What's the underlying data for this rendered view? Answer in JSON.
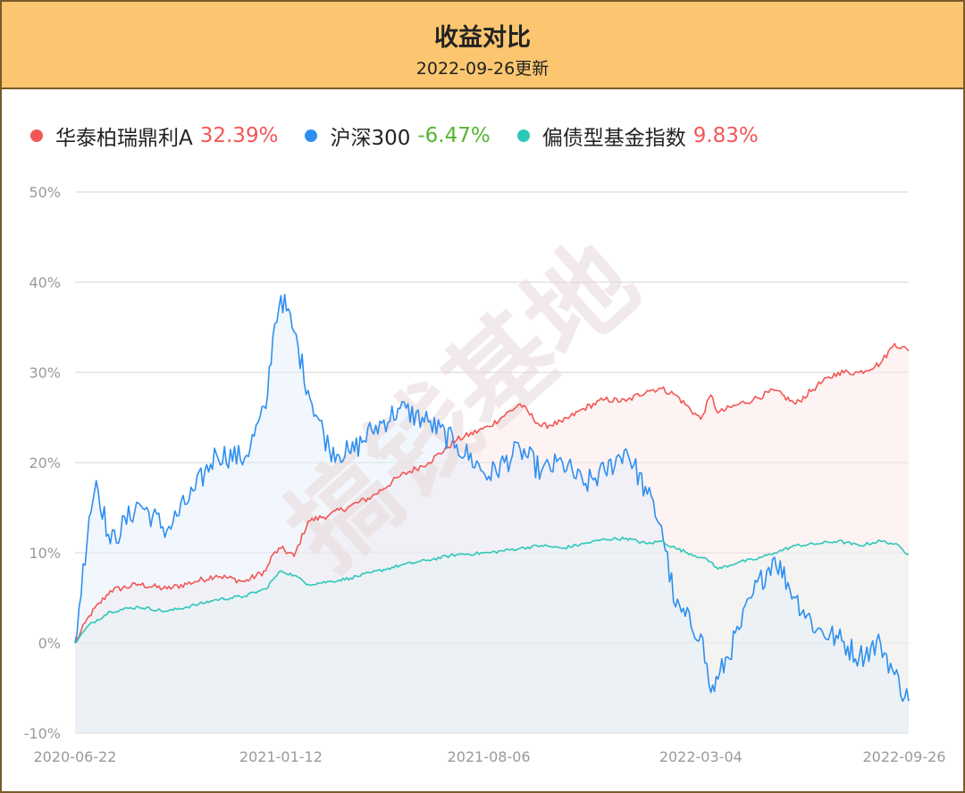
{
  "header": {
    "title": "收益对比",
    "subtitle": "2022-09-26更新"
  },
  "legend": [
    {
      "name": "华泰柏瑞鼎利A",
      "value": "32.39%",
      "dot_color": "#f25757",
      "value_color": "#f25757"
    },
    {
      "name": "沪深300",
      "value": "-6.47%",
      "dot_color": "#2e8ff0",
      "value_color": "#55b630"
    },
    {
      "name": "偏债型基金指数",
      "value": "9.83%",
      "dot_color": "#2ec8b8",
      "value_color": "#f25757"
    }
  ],
  "watermark": {
    "text": "搞钱基地"
  },
  "chart_data": {
    "type": "line",
    "x_ticks": [
      "2020-06-22",
      "2021-01-12",
      "2021-08-06",
      "2022-03-04",
      "2022-09-26"
    ],
    "y_ticks": [
      "50%",
      "40%",
      "30%",
      "20%",
      "10%",
      "0%",
      "-10%"
    ],
    "ylim": [
      -10,
      50
    ],
    "grid": true,
    "legend_position": "top-left",
    "series": [
      {
        "name": "华泰柏瑞鼎利A",
        "color": "#f25757",
        "x": [
          "2020-06-22",
          "2020-07-06",
          "2020-07-27",
          "2020-08-24",
          "2020-09-21",
          "2020-10-19",
          "2020-11-09",
          "2020-12-07",
          "2020-12-28",
          "2021-01-04",
          "2021-01-12",
          "2021-01-25",
          "2021-02-08",
          "2021-03-01",
          "2021-03-22",
          "2021-04-12",
          "2021-05-10",
          "2021-06-07",
          "2021-07-05",
          "2021-08-06",
          "2021-09-06",
          "2021-09-27",
          "2021-10-18",
          "2021-11-08",
          "2021-11-29",
          "2021-12-20",
          "2022-01-10",
          "2022-01-24",
          "2022-02-07",
          "2022-03-04",
          "2022-03-14",
          "2022-03-21",
          "2022-04-11",
          "2022-04-25",
          "2022-05-16",
          "2022-06-06",
          "2022-06-27",
          "2022-07-18",
          "2022-08-08",
          "2022-08-29",
          "2022-09-12",
          "2022-09-26"
        ],
        "y": [
          0.0,
          3.0,
          5.8,
          6.5,
          6.0,
          6.8,
          7.5,
          6.8,
          8.0,
          9.8,
          10.5,
          9.6,
          13.5,
          14.2,
          15.2,
          16.2,
          18.5,
          20.0,
          22.5,
          24.0,
          26.5,
          24.0,
          24.5,
          26.0,
          27.0,
          26.8,
          28.0,
          28.2,
          27.5,
          24.8,
          27.5,
          25.5,
          26.5,
          27.0,
          28.0,
          26.5,
          28.5,
          30.0,
          30.0,
          31.0,
          33.2,
          32.39
        ]
      },
      {
        "name": "沪深300",
        "color": "#2e8ff0",
        "x": [
          "2020-06-22",
          "2020-07-06",
          "2020-07-13",
          "2020-07-27",
          "2020-08-24",
          "2020-09-21",
          "2020-10-19",
          "2020-11-09",
          "2020-12-07",
          "2020-12-28",
          "2021-01-04",
          "2021-01-12",
          "2021-01-25",
          "2021-02-08",
          "2021-03-01",
          "2021-03-22",
          "2021-04-12",
          "2021-05-10",
          "2021-06-07",
          "2021-07-05",
          "2021-08-06",
          "2021-09-06",
          "2021-09-27",
          "2021-10-18",
          "2021-11-08",
          "2021-11-29",
          "2021-12-20",
          "2022-01-10",
          "2022-01-24",
          "2022-02-07",
          "2022-03-04",
          "2022-03-14",
          "2022-03-21",
          "2022-04-11",
          "2022-04-25",
          "2022-05-16",
          "2022-06-06",
          "2022-06-27",
          "2022-07-18",
          "2022-08-08",
          "2022-08-29",
          "2022-09-12",
          "2022-09-26"
        ],
        "y": [
          0.0,
          14.0,
          18.0,
          11.0,
          15.5,
          12.5,
          17.0,
          21.0,
          20.5,
          26.0,
          34.0,
          38.5,
          34.5,
          28.0,
          21.5,
          21.0,
          23.5,
          26.0,
          24.5,
          22.0,
          18.5,
          21.5,
          19.0,
          20.0,
          17.5,
          19.0,
          21.5,
          16.5,
          13.0,
          4.0,
          1.0,
          -5.5,
          -4.0,
          1.5,
          5.5,
          9.5,
          5.0,
          1.5,
          0.5,
          -1.5,
          0.0,
          -3.5,
          -6.47
        ]
      },
      {
        "name": "偏债型基金指数",
        "color": "#2ec8b8",
        "x": [
          "2020-06-22",
          "2020-07-06",
          "2020-07-27",
          "2020-08-24",
          "2020-09-21",
          "2020-10-19",
          "2020-11-09",
          "2020-12-07",
          "2020-12-28",
          "2021-01-04",
          "2021-01-12",
          "2021-01-25",
          "2021-02-08",
          "2021-03-01",
          "2021-03-22",
          "2021-04-12",
          "2021-05-10",
          "2021-06-07",
          "2021-07-05",
          "2021-08-06",
          "2021-09-06",
          "2021-09-27",
          "2021-10-18",
          "2021-11-08",
          "2021-11-29",
          "2021-12-20",
          "2022-01-10",
          "2022-01-24",
          "2022-02-07",
          "2022-03-04",
          "2022-03-14",
          "2022-03-21",
          "2022-04-11",
          "2022-04-25",
          "2022-05-16",
          "2022-06-06",
          "2022-06-27",
          "2022-07-18",
          "2022-08-08",
          "2022-08-29",
          "2022-09-12",
          "2022-09-26"
        ],
        "y": [
          0.0,
          2.0,
          3.5,
          4.0,
          3.5,
          4.2,
          4.8,
          5.2,
          6.0,
          7.0,
          8.0,
          7.5,
          6.5,
          6.8,
          7.2,
          7.8,
          8.6,
          9.2,
          9.8,
          10.0,
          10.5,
          10.8,
          10.5,
          11.0,
          11.5,
          11.6,
          11.0,
          11.3,
          10.5,
          9.5,
          9.0,
          8.2,
          9.0,
          9.2,
          10.0,
          10.8,
          11.0,
          11.3,
          10.8,
          11.3,
          11.0,
          9.83
        ]
      }
    ]
  }
}
